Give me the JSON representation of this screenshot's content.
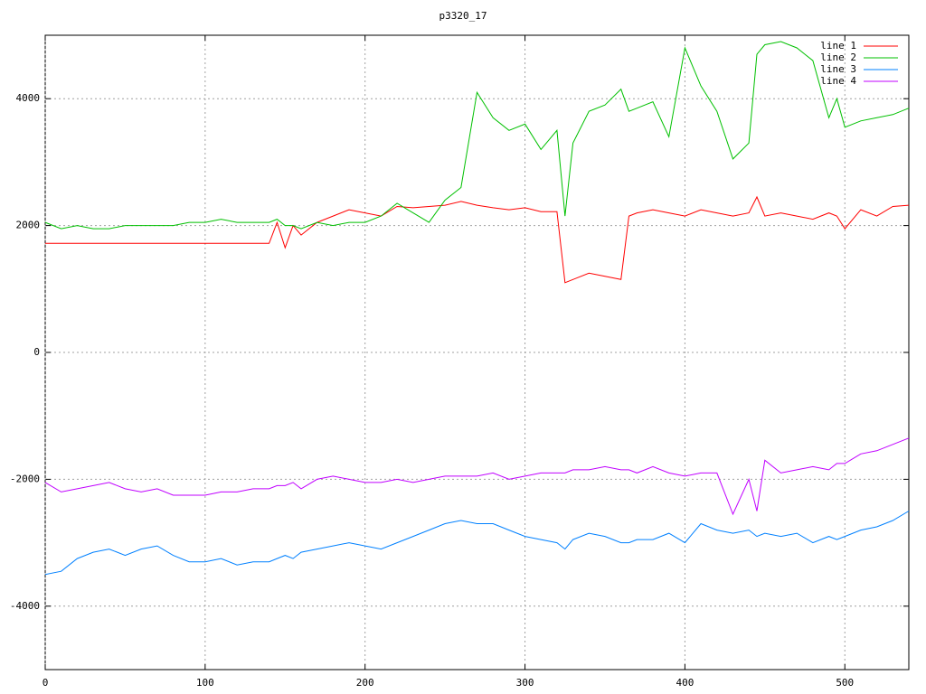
{
  "chart_data": {
    "type": "line",
    "title": "p3320_17",
    "x": [
      0,
      10,
      20,
      30,
      40,
      50,
      60,
      70,
      80,
      90,
      100,
      110,
      120,
      130,
      140,
      145,
      150,
      155,
      160,
      170,
      180,
      190,
      200,
      210,
      220,
      230,
      240,
      250,
      260,
      270,
      280,
      290,
      300,
      310,
      320,
      325,
      330,
      340,
      350,
      360,
      365,
      370,
      380,
      390,
      400,
      410,
      420,
      430,
      440,
      445,
      450,
      460,
      470,
      480,
      490,
      495,
      500,
      510,
      520,
      530,
      540
    ],
    "series": [
      {
        "name": "line 1",
        "color": "#ff0000",
        "values": [
          1720,
          1720,
          1720,
          1720,
          1720,
          1720,
          1720,
          1720,
          1720,
          1720,
          1720,
          1720,
          1720,
          1720,
          1720,
          2050,
          1650,
          2000,
          1850,
          2050,
          2150,
          2250,
          2200,
          2150,
          2300,
          2280,
          2300,
          2320,
          2380,
          2320,
          2280,
          2250,
          2280,
          2220,
          2220,
          1100,
          1150,
          1250,
          1200,
          1150,
          2150,
          2200,
          2250,
          2200,
          2150,
          2250,
          2200,
          2150,
          2200,
          2450,
          2150,
          2200,
          2150,
          2100,
          2200,
          2150,
          1950,
          2250,
          2150,
          2300,
          2320
        ]
      },
      {
        "name": "line 2",
        "color": "#00c000",
        "values": [
          2050,
          1950,
          2000,
          1950,
          1950,
          2000,
          2000,
          2000,
          2000,
          2050,
          2050,
          2100,
          2050,
          2050,
          2050,
          2100,
          2000,
          2000,
          1950,
          2050,
          2000,
          2050,
          2050,
          2150,
          2350,
          2200,
          2050,
          2400,
          2600,
          4100,
          3700,
          3500,
          3600,
          3200,
          3500,
          2150,
          3300,
          3800,
          3900,
          4150,
          3800,
          3850,
          3950,
          3400,
          4800,
          4200,
          3800,
          3050,
          3300,
          4700,
          4850,
          4900,
          4800,
          4600,
          3700,
          4000,
          3550,
          3650,
          3700,
          3750,
          3850
        ]
      },
      {
        "name": "line 3",
        "color": "#0080ff",
        "values": [
          -3500,
          -3450,
          -3250,
          -3150,
          -3100,
          -3200,
          -3100,
          -3050,
          -3200,
          -3300,
          -3300,
          -3250,
          -3350,
          -3300,
          -3300,
          -3250,
          -3200,
          -3250,
          -3150,
          -3100,
          -3050,
          -3000,
          -3050,
          -3100,
          -3000,
          -2900,
          -2800,
          -2700,
          -2650,
          -2700,
          -2700,
          -2800,
          -2900,
          -2950,
          -3000,
          -3100,
          -2950,
          -2850,
          -2900,
          -3000,
          -3000,
          -2950,
          -2950,
          -2850,
          -3000,
          -2700,
          -2800,
          -2850,
          -2800,
          -2900,
          -2850,
          -2900,
          -2850,
          -3000,
          -2900,
          -2950,
          -2900,
          -2800,
          -2750,
          -2650,
          -2500
        ]
      },
      {
        "name": "line 4",
        "color": "#c000ff",
        "values": [
          -2050,
          -2200,
          -2150,
          -2100,
          -2050,
          -2150,
          -2200,
          -2150,
          -2250,
          -2250,
          -2250,
          -2200,
          -2200,
          -2150,
          -2150,
          -2100,
          -2100,
          -2050,
          -2150,
          -2000,
          -1950,
          -2000,
          -2050,
          -2050,
          -2000,
          -2050,
          -2000,
          -1950,
          -1950,
          -1950,
          -1900,
          -2000,
          -1950,
          -1900,
          -1900,
          -1900,
          -1850,
          -1850,
          -1800,
          -1850,
          -1850,
          -1900,
          -1800,
          -1900,
          -1950,
          -1900,
          -1900,
          -2550,
          -2000,
          -2500,
          -1700,
          -1900,
          -1850,
          -1800,
          -1850,
          -1750,
          -1750,
          -1600,
          -1550,
          -1450,
          -1350
        ]
      }
    ],
    "xlim": [
      0,
      540
    ],
    "ylim": [
      -5000,
      5000
    ],
    "xticks": [
      0,
      100,
      200,
      300,
      400,
      500
    ],
    "yticks": [
      -4000,
      -2000,
      0,
      2000,
      4000
    ],
    "grid": true,
    "legend": "top-right"
  }
}
